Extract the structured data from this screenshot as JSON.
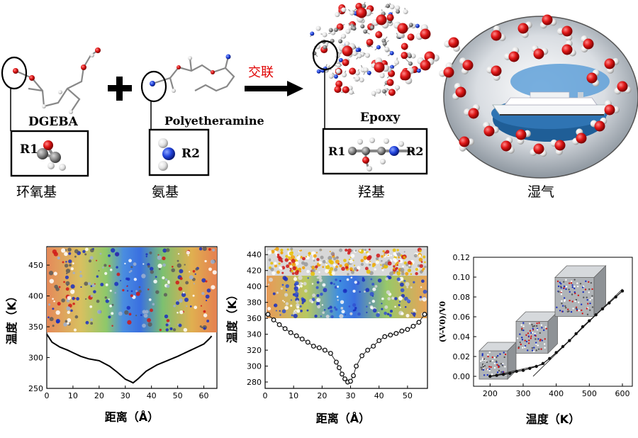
{
  "top": {
    "molecules": [
      {
        "name": "DGEBA",
        "group_code": "R1",
        "group_name": "环氧基"
      },
      {
        "name": "Polyetheramine",
        "group_code": "R2",
        "group_name": "氨基"
      },
      {
        "name": "Epoxy",
        "group_codes": [
          "R1",
          "R2"
        ],
        "group_name": "羟基"
      }
    ],
    "reaction_label": "交联",
    "moisture_label": "湿气",
    "colors": {
      "oxygen": "#d0021b",
      "nitrogen": "#2244dd",
      "carbon": "#8a8a8a",
      "hydrogen": "#eeeeee",
      "reaction_label": "#e00000"
    }
  },
  "chart_data": [
    {
      "type": "line",
      "xlabel": "距离（Å）",
      "ylabel": "温度（K）",
      "xlim": [
        0,
        65
      ],
      "ylim": [
        250,
        480
      ],
      "xticks": [
        0,
        10,
        20,
        30,
        40,
        50,
        60
      ],
      "yticks": [
        250,
        300,
        350,
        400,
        450
      ],
      "series": [
        {
          "x": [
            0,
            2,
            5,
            8,
            10,
            13,
            16,
            20,
            24,
            27,
            30,
            32,
            33,
            35,
            38,
            42,
            46,
            50,
            54,
            57,
            60,
            62,
            63
          ],
          "y": [
            338,
            325,
            317,
            312,
            308,
            302,
            298,
            295,
            286,
            276,
            265,
            261,
            259,
            266,
            278,
            288,
            295,
            302,
            310,
            316,
            322,
            330,
            335
          ]
        }
      ]
    },
    {
      "type": "scatter",
      "xlabel": "距离（Å）",
      "ylabel": "温度（K）",
      "xlim": [
        0,
        57
      ],
      "ylim": [
        272,
        450
      ],
      "xticks": [
        0,
        10,
        20,
        30,
        40,
        50
      ],
      "yticks": [
        280,
        300,
        320,
        340,
        360,
        380,
        400,
        420,
        440
      ],
      "series": [
        {
          "x": [
            1,
            3,
            5,
            7,
            9,
            11,
            13,
            15,
            17,
            19,
            21,
            23,
            25,
            26,
            27,
            28,
            29,
            30,
            31,
            32,
            34,
            36,
            38,
            40,
            42,
            44,
            46,
            48,
            50,
            52,
            54,
            56
          ],
          "y": [
            365,
            358,
            352,
            347,
            342,
            338,
            334,
            330,
            325,
            323,
            320,
            316,
            305,
            298,
            290,
            284,
            280,
            281,
            288,
            300,
            313,
            320,
            325,
            332,
            337,
            339,
            341,
            344,
            346,
            350,
            355,
            365
          ]
        }
      ]
    },
    {
      "type": "scatter",
      "xlabel": "温度（K）",
      "ylabel": "(V-V0)/V0",
      "xlim": [
        150,
        630
      ],
      "ylim": [
        -0.01,
        0.12
      ],
      "xticks": [
        200,
        300,
        400,
        500,
        600
      ],
      "yticks": [
        0.0,
        0.02,
        0.04,
        0.06,
        0.08,
        0.1,
        0.12
      ],
      "ytick_labels": [
        "0.00",
        "0.02",
        "0.04",
        "0.06",
        "0.08",
        "0.10",
        "0.12"
      ],
      "series": [
        {
          "x": [
            200,
            220,
            240,
            260,
            280,
            300,
            320,
            340,
            360,
            380,
            400,
            420,
            440,
            460,
            480,
            500,
            520,
            540,
            560,
            580,
            600
          ],
          "y": [
            0.0,
            0.001,
            0.002,
            0.003,
            0.005,
            0.006,
            0.008,
            0.01,
            0.013,
            0.018,
            0.024,
            0.03,
            0.036,
            0.043,
            0.05,
            0.056,
            0.062,
            0.068,
            0.074,
            0.08,
            0.086
          ]
        }
      ],
      "fit_lines": [
        {
          "x": [
            200,
            360
          ],
          "y": [
            0.0,
            0.012
          ]
        },
        {
          "x": [
            330,
            600
          ],
          "y": [
            0.0,
            0.088
          ]
        }
      ]
    }
  ]
}
